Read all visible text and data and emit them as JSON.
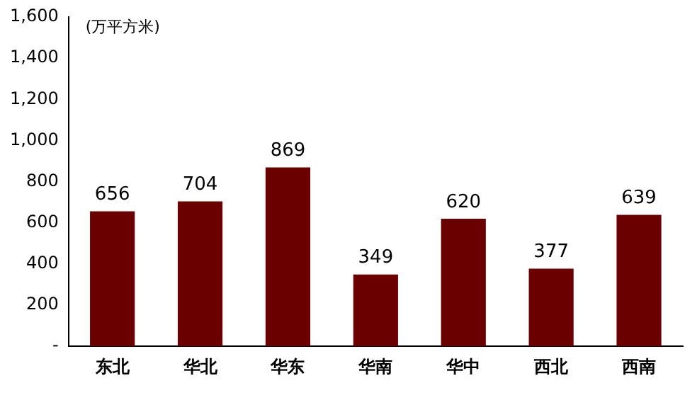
{
  "chart_data": {
    "type": "bar",
    "ylabel": "(万平方米)",
    "categories": [
      "东北",
      "华北",
      "华东",
      "华南",
      "华中",
      "西北",
      "西南"
    ],
    "values": [
      656,
      704,
      869,
      349,
      620,
      377,
      639
    ],
    "color": "#6b0000",
    "ylim": [
      0,
      1600
    ],
    "yticks": [
      {
        "value": 0,
        "label": "-"
      },
      200,
      400,
      600,
      800,
      {
        "value": 1000,
        "label": "1,000"
      },
      {
        "value": 1200,
        "label": "1,200"
      },
      {
        "value": 1400,
        "label": "1,400"
      },
      {
        "value": 1600,
        "label": "1,600"
      }
    ],
    "data_labels": true,
    "grid": false,
    "legend": false
  }
}
